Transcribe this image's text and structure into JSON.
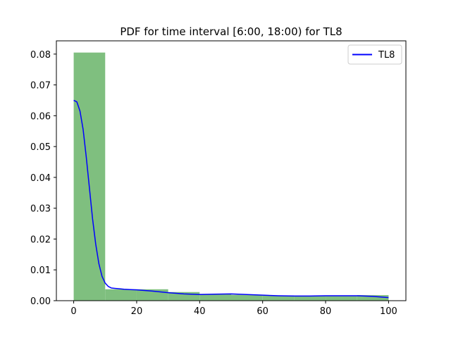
{
  "chart_data": {
    "type": "bar",
    "title": "PDF for time interval [6:00, 18:00) for TL8",
    "xlabel": "",
    "ylabel": "",
    "xlim": [
      -5.5,
      105.5
    ],
    "ylim": [
      0,
      0.0843
    ],
    "x_ticks": [
      0,
      20,
      40,
      60,
      80,
      100
    ],
    "y_ticks": [
      0.0,
      0.01,
      0.02,
      0.03,
      0.04,
      0.05,
      0.06,
      0.07,
      0.08
    ],
    "y_tick_labels": [
      "0.00",
      "0.01",
      "0.02",
      "0.03",
      "0.04",
      "0.05",
      "0.06",
      "0.07",
      "0.08"
    ],
    "grid": false,
    "legend_position": "upper-right",
    "histogram": {
      "bin_edges": [
        0,
        10,
        20,
        30,
        40,
        50,
        60,
        70,
        80,
        90,
        100
      ],
      "values": [
        0.0805,
        0.0037,
        0.0037,
        0.0028,
        0.0022,
        0.0019,
        0.0017,
        0.0015,
        0.0015,
        0.0018
      ],
      "color": "#7fbf7f"
    },
    "series": [
      {
        "name": "TL8",
        "type": "line",
        "color": "#0000ff",
        "x": [
          0,
          1,
          2,
          3,
          4,
          5,
          6,
          7,
          8,
          9,
          10,
          11,
          12,
          13,
          14,
          16,
          18,
          20,
          25,
          30,
          35,
          40,
          45,
          50,
          55,
          60,
          65,
          70,
          75,
          80,
          85,
          90,
          95,
          100
        ],
        "y": [
          0.065,
          0.0645,
          0.0615,
          0.0555,
          0.0465,
          0.0365,
          0.0265,
          0.0183,
          0.012,
          0.0079,
          0.0057,
          0.0046,
          0.0041,
          0.004,
          0.0039,
          0.0037,
          0.0036,
          0.0035,
          0.0031,
          0.0026,
          0.0022,
          0.002,
          0.0021,
          0.0022,
          0.002,
          0.0018,
          0.0016,
          0.0015,
          0.0015,
          0.0016,
          0.0016,
          0.0016,
          0.0014,
          0.001
        ]
      }
    ]
  }
}
